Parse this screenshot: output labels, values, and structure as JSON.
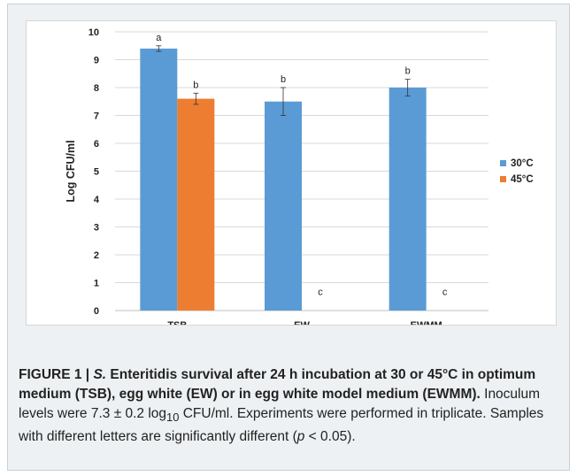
{
  "chart_data": {
    "type": "bar",
    "categories": [
      "TSB",
      "EW",
      "EWMM"
    ],
    "ylabel": "Log CFU/ml",
    "ylim": [
      0,
      10
    ],
    "yticks": [
      0,
      1,
      2,
      3,
      4,
      5,
      6,
      7,
      8,
      9,
      10
    ],
    "grid": true,
    "legend_position": "right",
    "series": [
      {
        "name": "30°C",
        "color": "#5b9bd5",
        "values": [
          9.4,
          7.5,
          8.0
        ],
        "errors": [
          0.1,
          0.5,
          0.3
        ],
        "letters": [
          "a",
          "b",
          "b"
        ]
      },
      {
        "name": "45°C",
        "color": "#ed7d31",
        "values": [
          7.6,
          0,
          0
        ],
        "errors": [
          0.2,
          0,
          0
        ],
        "letters": [
          "b",
          "c",
          "c"
        ]
      }
    ]
  },
  "caption": {
    "figure_label": "FIGURE 1 | ",
    "species_italic": "S.",
    "title_rest": " Enteritidis survival after 24 h incubation at 30 or 45°C in optimum medium (TSB), egg white (EW) or in egg white model medium (EWMM).",
    "body_part1": " Inoculum levels were 7.3 ± 0.2 log",
    "body_sub": "10",
    "body_part2": " CFU/ml. Experiments were performed in triplicate. Samples with different letters are significantly different (",
    "p_italic": "p",
    "body_end": " < 0.05)."
  }
}
